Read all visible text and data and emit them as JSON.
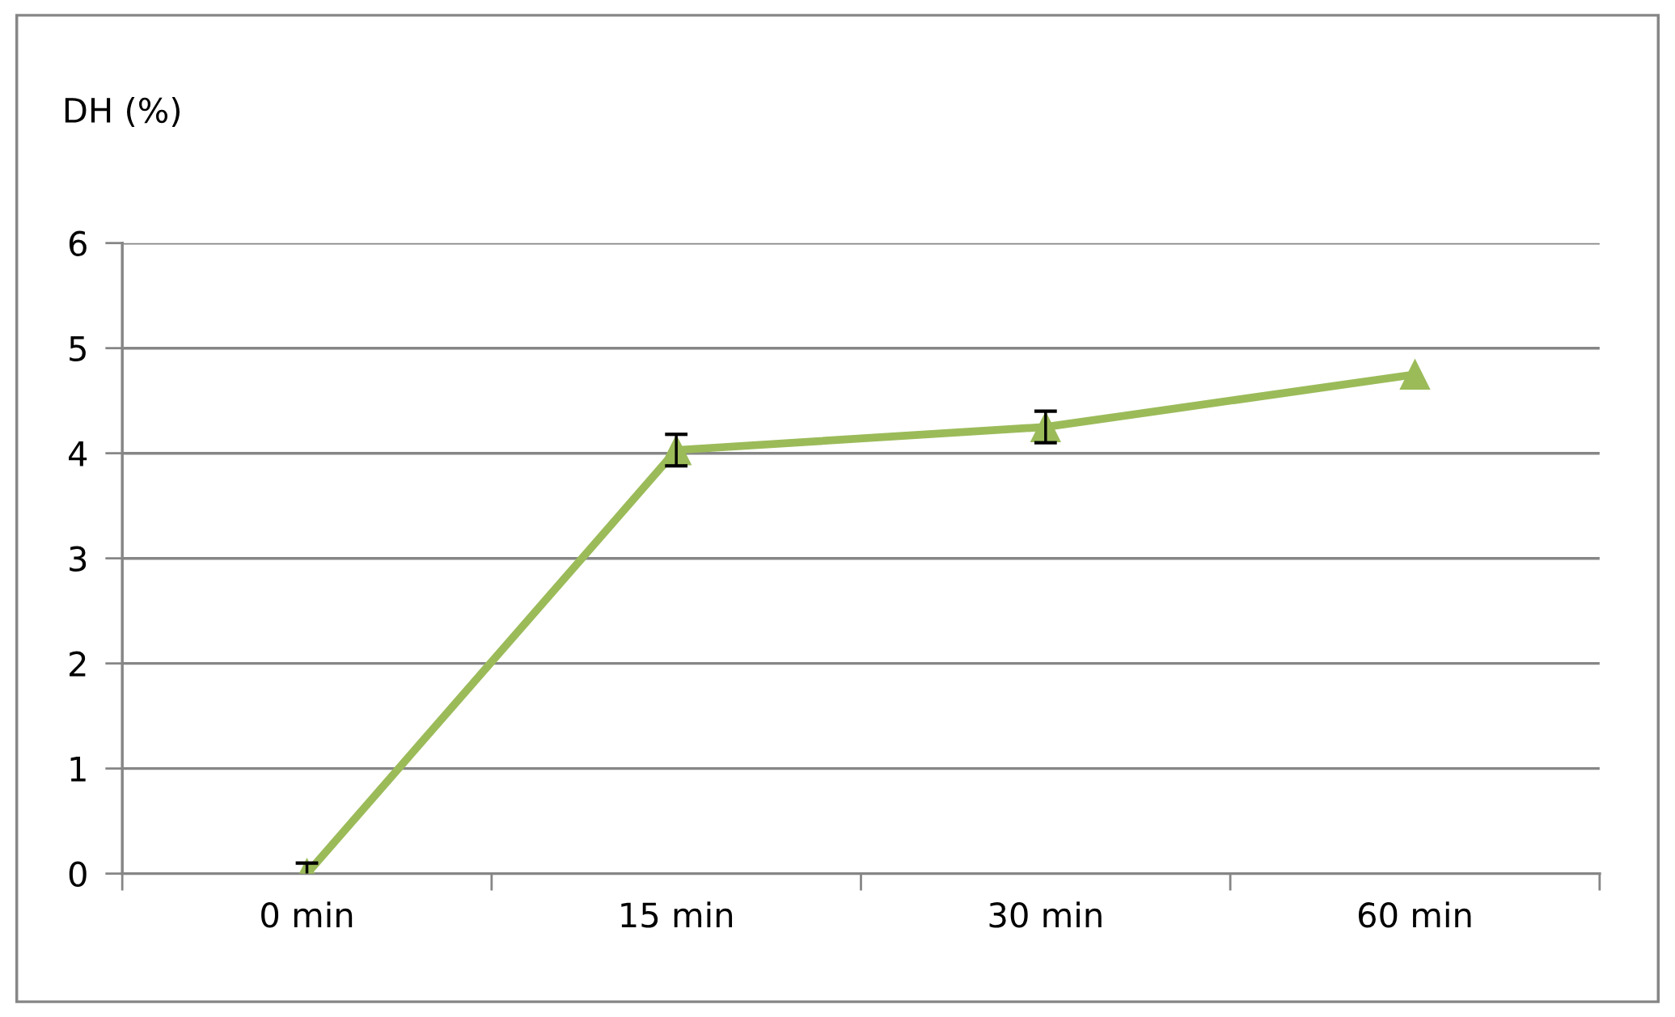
{
  "chart_data": {
    "type": "line",
    "ylabel": "DH (%)",
    "categories": [
      "0 min",
      "15 min",
      "30 min",
      "60 min"
    ],
    "series": [
      {
        "color": "#9bbb59",
        "values": [
          0,
          4.03,
          4.25,
          4.75
        ],
        "errors": [
          0.1,
          0.15,
          0.15,
          null
        ]
      }
    ],
    "ylim": [
      0,
      6
    ],
    "yticks": [
      0,
      1,
      2,
      3,
      4,
      5,
      6
    ],
    "grid": "y",
    "marker": "triangle",
    "line_style": "solid",
    "legend": false
  }
}
